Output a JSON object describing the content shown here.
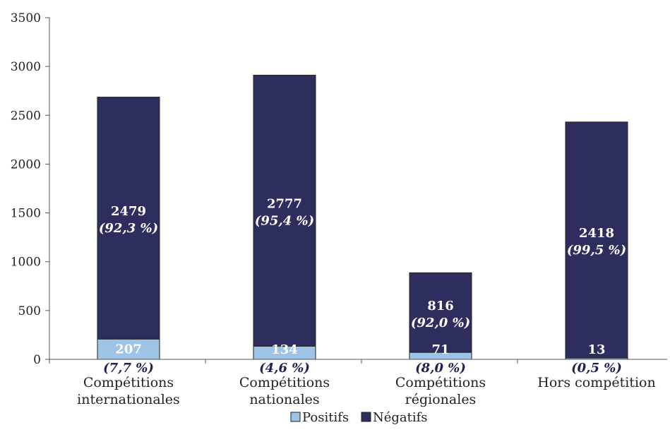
{
  "chart_data": {
    "type": "bar",
    "stacked": true,
    "categories": [
      [
        "Compétitions",
        "internationales"
      ],
      [
        "Compétitions",
        "nationales"
      ],
      [
        "Compétitions",
        "régionales"
      ],
      [
        "Hors compétition"
      ]
    ],
    "series": [
      {
        "name": "Positifs",
        "color": "#9dc3e6",
        "values": [
          207,
          134,
          71,
          13
        ],
        "labels": [
          "207",
          "134",
          "71",
          "13"
        ],
        "pct_labels": [
          "(7,7 %)",
          "(4,6 %)",
          "(8,0 %)",
          "(0,5 %)"
        ]
      },
      {
        "name": "Négatifs",
        "color": "#2e2e5e",
        "values": [
          2479,
          2777,
          816,
          2418
        ],
        "labels": [
          "2479",
          "2777",
          "816",
          "2418"
        ],
        "pct_labels": [
          "(92,3 %)",
          "(95,4 %)",
          "(92,0 %)",
          "(99,5 %)"
        ]
      }
    ],
    "ylim": [
      0,
      3500
    ],
    "yticks": [
      0,
      500,
      1000,
      1500,
      2000,
      2500,
      3000,
      3500
    ],
    "grid": false,
    "legend": "bottom-center",
    "title": "",
    "xlabel": "",
    "ylabel": ""
  }
}
